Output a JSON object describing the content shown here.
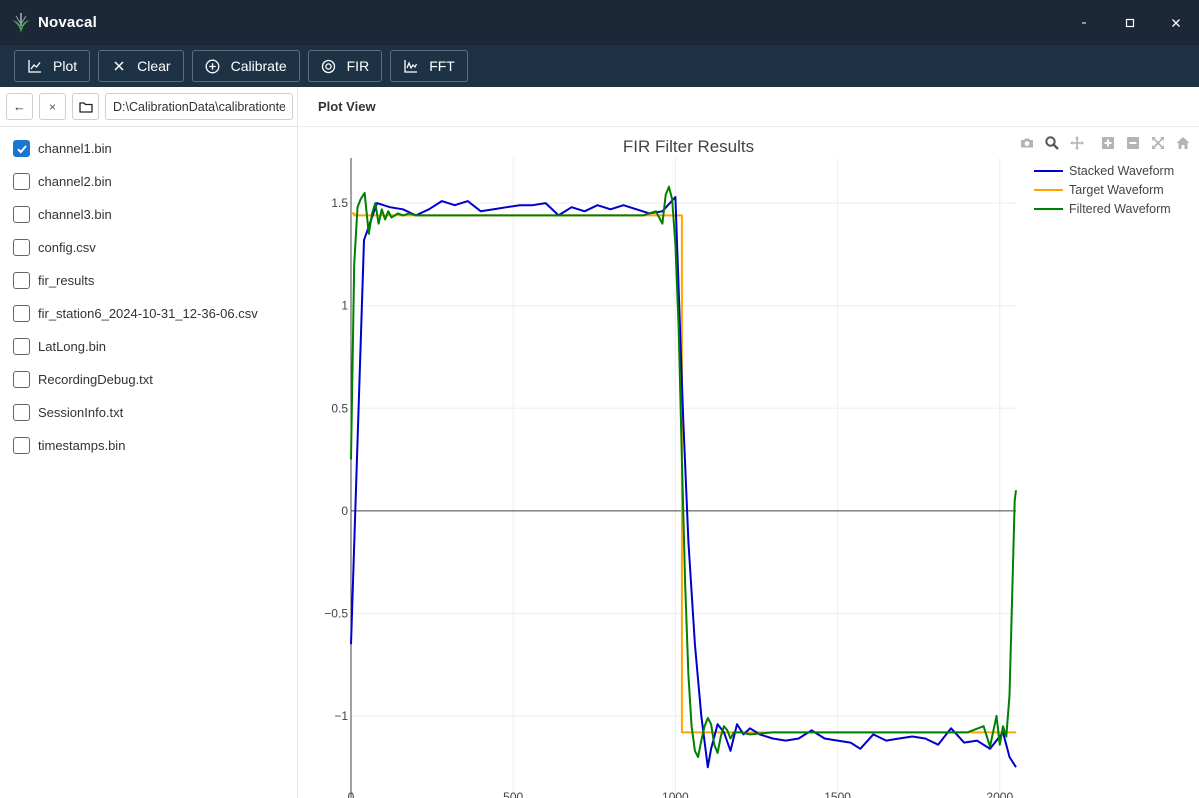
{
  "app": {
    "title": "Novacal"
  },
  "window_controls": {
    "minimize": "-",
    "close": "×"
  },
  "toolbar": {
    "buttons": [
      {
        "label": "Plot",
        "icon": "line-chart-icon"
      },
      {
        "label": "Clear",
        "icon": "close-icon"
      },
      {
        "label": "Calibrate",
        "icon": "plus-circle-icon"
      },
      {
        "label": "FIR",
        "icon": "target-icon"
      },
      {
        "label": "FFT",
        "icon": "spectrum-chart-icon"
      }
    ]
  },
  "file_browser": {
    "back_label": "←",
    "clear_label": "×",
    "path_value": "D:\\CalibrationData\\calibrationtest",
    "files": [
      {
        "name": "channel1.bin",
        "checked": true
      },
      {
        "name": "channel2.bin",
        "checked": false
      },
      {
        "name": "channel3.bin",
        "checked": false
      },
      {
        "name": "config.csv",
        "checked": false
      },
      {
        "name": "fir_results",
        "checked": false
      },
      {
        "name": "fir_station6_2024-10-31_12-36-06.csv",
        "checked": false
      },
      {
        "name": "LatLong.bin",
        "checked": false
      },
      {
        "name": "RecordingDebug.txt",
        "checked": false
      },
      {
        "name": "SessionInfo.txt",
        "checked": false
      },
      {
        "name": "timestamps.bin",
        "checked": false
      }
    ]
  },
  "plot_view": {
    "header": "Plot View"
  },
  "modebar": {
    "buttons": [
      "camera-icon",
      "zoom-icon",
      "pan-icon",
      "zoom-in-icon",
      "zoom-out-icon",
      "autoscale-icon",
      "home-icon"
    ]
  },
  "colors": {
    "titlebar_bg": "#1c2838",
    "toolbar_bg": "#1e3246",
    "checkbox_checked": "#1976d2",
    "stacked": "#0000cc",
    "target": "#ffa500",
    "filtered": "#008000"
  },
  "chart_data": {
    "type": "line",
    "title": "FIR Filter Results",
    "xlim": [
      0,
      2050
    ],
    "ylim": [
      -1.4,
      1.72
    ],
    "xticks": [
      0,
      500,
      1000,
      1500,
      2000
    ],
    "yticks": [
      -1,
      -0.5,
      0,
      0.5,
      1,
      1.5
    ],
    "ytick_labels": [
      "−1",
      "−0.5",
      "0",
      "0.5",
      "1",
      "1.5"
    ],
    "grid": true,
    "legend_position": "top-right",
    "series": [
      {
        "name": "Stacked Waveform",
        "color": "#0000cc",
        "x": [
          0,
          40,
          80,
          120,
          160,
          200,
          240,
          280,
          320,
          360,
          400,
          440,
          480,
          520,
          560,
          600,
          640,
          680,
          720,
          760,
          800,
          840,
          880,
          920,
          960,
          1000,
          1024,
          1040,
          1060,
          1080,
          1100,
          1110,
          1130,
          1150,
          1170,
          1190,
          1210,
          1230,
          1260,
          1300,
          1340,
          1380,
          1420,
          1460,
          1500,
          1540,
          1570,
          1610,
          1650,
          1690,
          1730,
          1770,
          1810,
          1850,
          1890,
          1930,
          1970,
          2010,
          2030,
          2050
        ],
        "y": [
          -0.65,
          1.32,
          1.5,
          1.48,
          1.47,
          1.44,
          1.47,
          1.51,
          1.49,
          1.51,
          1.46,
          1.47,
          1.48,
          1.49,
          1.49,
          1.5,
          1.44,
          1.48,
          1.46,
          1.49,
          1.47,
          1.49,
          1.47,
          1.45,
          1.46,
          1.53,
          0.45,
          -0.15,
          -0.65,
          -1.0,
          -1.25,
          -1.16,
          -1.04,
          -1.08,
          -1.17,
          -1.04,
          -1.09,
          -1.06,
          -1.09,
          -1.11,
          -1.12,
          -1.11,
          -1.07,
          -1.11,
          -1.12,
          -1.13,
          -1.16,
          -1.09,
          -1.12,
          -1.11,
          -1.1,
          -1.11,
          -1.14,
          -1.06,
          -1.13,
          -1.12,
          -1.16,
          -1.08,
          -1.2,
          -1.25
        ]
      },
      {
        "name": "Target Waveform",
        "color": "#ffa500",
        "x": [
          0,
          10,
          10,
          1020,
          1020,
          2050
        ],
        "y": [
          1.45,
          1.45,
          1.44,
          1.44,
          -1.08,
          -1.08
        ]
      },
      {
        "name": "Filtered Waveform",
        "color": "#008000",
        "x": [
          0,
          10,
          20,
          30,
          42,
          55,
          65,
          75,
          85,
          95,
          105,
          115,
          125,
          135,
          145,
          160,
          180,
          200,
          240,
          300,
          400,
          500,
          600,
          700,
          800,
          900,
          940,
          960,
          970,
          980,
          990,
          1000,
          1010,
          1020,
          1030,
          1040,
          1050,
          1060,
          1070,
          1080,
          1090,
          1100,
          1110,
          1120,
          1130,
          1140,
          1150,
          1160,
          1170,
          1180,
          1200,
          1230,
          1300,
          1400,
          1500,
          1600,
          1700,
          1800,
          1900,
          1950,
          1970,
          1990,
          2000,
          2010,
          2020,
          2030,
          2040,
          2046,
          2050
        ],
        "y": [
          0.25,
          1.2,
          1.48,
          1.52,
          1.55,
          1.35,
          1.45,
          1.5,
          1.4,
          1.47,
          1.42,
          1.46,
          1.43,
          1.44,
          1.45,
          1.44,
          1.45,
          1.44,
          1.44,
          1.44,
          1.44,
          1.44,
          1.44,
          1.44,
          1.44,
          1.44,
          1.46,
          1.4,
          1.54,
          1.58,
          1.52,
          1.3,
          0.9,
          0.25,
          -0.35,
          -0.8,
          -1.05,
          -1.17,
          -1.2,
          -1.12,
          -1.05,
          -1.01,
          -1.04,
          -1.14,
          -1.18,
          -1.1,
          -1.05,
          -1.07,
          -1.11,
          -1.08,
          -1.08,
          -1.09,
          -1.08,
          -1.08,
          -1.08,
          -1.08,
          -1.08,
          -1.08,
          -1.08,
          -1.05,
          -1.15,
          -1.0,
          -1.14,
          -1.05,
          -1.1,
          -0.9,
          -0.3,
          0.05,
          0.1
        ]
      }
    ]
  }
}
